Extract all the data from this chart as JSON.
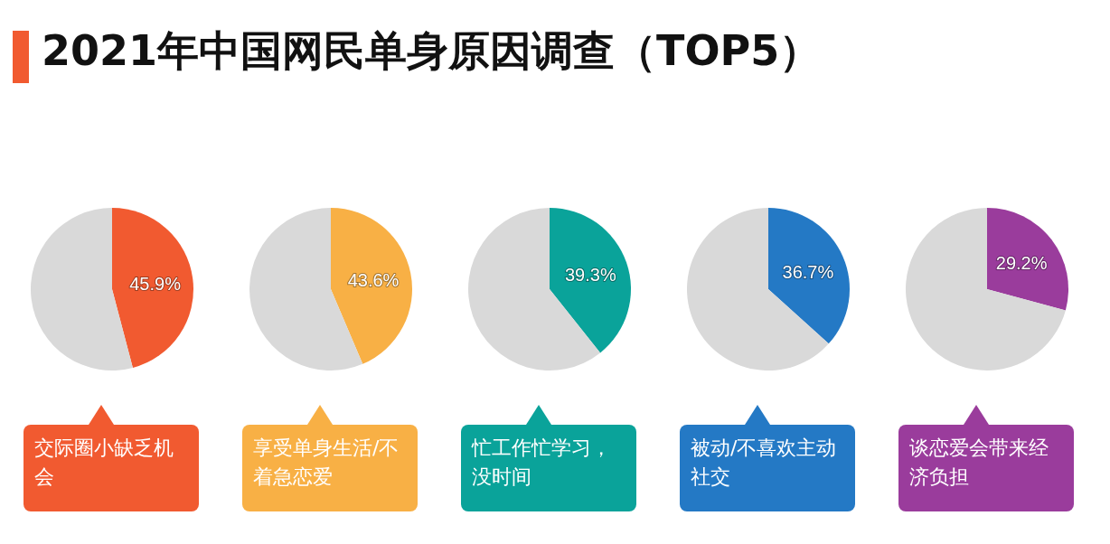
{
  "chart_data": [
    {
      "type": "pie",
      "title": "2021年中国网民单身原因调查（TOP5）",
      "categories": [
        "交际圈小缺乏机会",
        null
      ],
      "values": [
        45.9,
        54.1
      ],
      "colors": [
        "#f15a30",
        "#d9d9d9"
      ],
      "value_labels": [
        "45.9%",
        null
      ]
    },
    {
      "type": "pie",
      "categories": [
        "享受单身生活/不着急恋爱",
        null
      ],
      "values": [
        43.6,
        56.4
      ],
      "colors": [
        "#f8b045",
        "#d9d9d9"
      ],
      "value_labels": [
        "43.6%",
        null
      ]
    },
    {
      "type": "pie",
      "categories": [
        "忙工作忙学习，没时间",
        null
      ],
      "values": [
        39.3,
        60.7
      ],
      "colors": [
        "#0aa39a",
        "#d9d9d9"
      ],
      "value_labels": [
        "39.3%",
        null
      ]
    },
    {
      "type": "pie",
      "categories": [
        "被动/不喜欢主动社交",
        null
      ],
      "values": [
        36.7,
        63.3
      ],
      "colors": [
        "#2479c5",
        "#d9d9d9"
      ],
      "value_labels": [
        "36.7%",
        null
      ]
    },
    {
      "type": "pie",
      "categories": [
        "谈恋爱会带来经济负担",
        null
      ],
      "values": [
        29.2,
        70.8
      ],
      "colors": [
        "#9a3c9c",
        "#d9d9d9"
      ],
      "value_labels": [
        "29.2%",
        null
      ]
    }
  ]
}
